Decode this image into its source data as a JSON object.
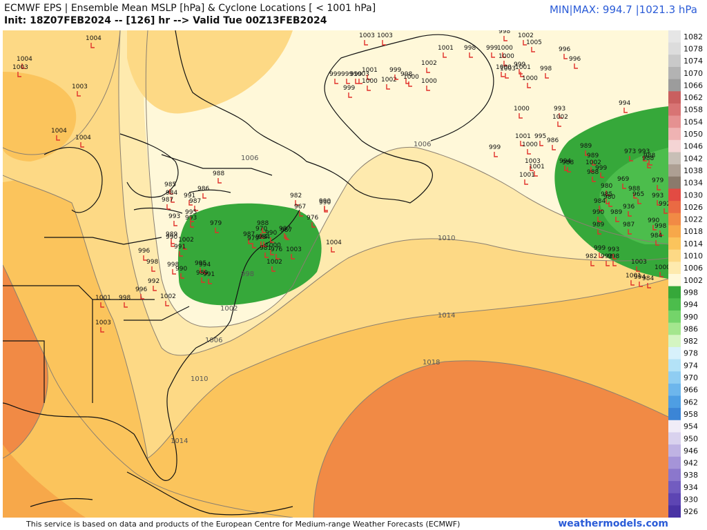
{
  "header": {
    "title": "ECMWF EPS | Ensemble Mean MSLP [hPa] & Cyclone Locations [ < 1001 hPa]",
    "subtitle": "Init: 18Z07FEB2024 -- [126] hr --> Valid Tue 00Z13FEB2024",
    "minmax": "MIN|MAX: 994.7 |1021.3 hPa"
  },
  "footer": {
    "attribution": "This service is based on data and products of the European Centre for Medium-range Weather Forecasts (ECMWF)",
    "brand": "weathermodels.com"
  },
  "colorbar": {
    "items": [
      {
        "label": "1082",
        "color": "#e6e6e6"
      },
      {
        "label": "1078",
        "color": "#dcdcdc"
      },
      {
        "label": "1074",
        "color": "#c9c9c9"
      },
      {
        "label": "1070",
        "color": "#b3b3b3"
      },
      {
        "label": "1066",
        "color": "#9c9c9c"
      },
      {
        "label": "1062",
        "color": "#c95f5f"
      },
      {
        "label": "1058",
        "color": "#d87474"
      },
      {
        "label": "1054",
        "color": "#e59191"
      },
      {
        "label": "1050",
        "color": "#efb3b3"
      },
      {
        "label": "1046",
        "color": "#f4d4d4"
      },
      {
        "label": "1042",
        "color": "#c8bfb6"
      },
      {
        "label": "1038",
        "color": "#ad9f93"
      },
      {
        "label": "1034",
        "color": "#8a7a6c"
      },
      {
        "label": "1030",
        "color": "#e24b43"
      },
      {
        "label": "1026",
        "color": "#ea6a43"
      },
      {
        "label": "1022",
        "color": "#f18a45"
      },
      {
        "label": "1018",
        "color": "#f7a84a"
      },
      {
        "label": "1014",
        "color": "#fbc45c"
      },
      {
        "label": "1010",
        "color": "#fdd985"
      },
      {
        "label": "1006",
        "color": "#feeaae"
      },
      {
        "label": "1002",
        "color": "#fff8d9"
      },
      {
        "label": "998",
        "color": "#36a83a"
      },
      {
        "label": "994",
        "color": "#4cbd4c"
      },
      {
        "label": "990",
        "color": "#74d46a"
      },
      {
        "label": "986",
        "color": "#a4e68e"
      },
      {
        "label": "982",
        "color": "#d4f5c2"
      },
      {
        "label": "978",
        "color": "#d7f1fb"
      },
      {
        "label": "974",
        "color": "#b3e2f7"
      },
      {
        "label": "970",
        "color": "#8fcdf2"
      },
      {
        "label": "966",
        "color": "#6db6ec"
      },
      {
        "label": "962",
        "color": "#4e9ee3"
      },
      {
        "label": "958",
        "color": "#3b85d6"
      },
      {
        "label": "954",
        "color": "#f0ecf7"
      },
      {
        "label": "950",
        "color": "#d9d2ee"
      },
      {
        "label": "946",
        "color": "#bfb3e3"
      },
      {
        "label": "942",
        "color": "#a594d8"
      },
      {
        "label": "938",
        "color": "#8b77cc"
      },
      {
        "label": "934",
        "color": "#725cc0"
      },
      {
        "label": "930",
        "color": "#5d45b3"
      },
      {
        "label": "926",
        "color": "#4a33a4"
      }
    ]
  },
  "map": {
    "isobar_labels": [
      {
        "text": "1006"
      },
      {
        "text": "1006"
      },
      {
        "text": "1006"
      },
      {
        "text": "1010"
      },
      {
        "text": "1010"
      },
      {
        "text": "1014"
      },
      {
        "text": "1014"
      },
      {
        "text": "1018"
      },
      {
        "text": "1002"
      },
      {
        "text": "998"
      }
    ],
    "cyclones": [
      {
        "p": "1004"
      },
      {
        "p": "1004"
      },
      {
        "p": "1003"
      },
      {
        "p": "1003"
      },
      {
        "p": "1004"
      },
      {
        "p": "1004"
      },
      {
        "p": "1003"
      },
      {
        "p": "1003"
      },
      {
        "p": "998"
      },
      {
        "p": "1002"
      },
      {
        "p": "1005"
      },
      {
        "p": "996"
      },
      {
        "p": "996"
      },
      {
        "p": "998"
      },
      {
        "p": "999"
      },
      {
        "p": "1000"
      },
      {
        "p": "1000"
      },
      {
        "p": "1003"
      },
      {
        "p": "1000"
      },
      {
        "p": "1001"
      },
      {
        "p": "998"
      },
      {
        "p": "999"
      },
      {
        "p": "1000"
      },
      {
        "p": "1002"
      },
      {
        "p": "1001"
      },
      {
        "p": "999"
      },
      {
        "p": "999"
      },
      {
        "p": "999"
      },
      {
        "p": "1003"
      },
      {
        "p": "1001"
      },
      {
        "p": "999"
      },
      {
        "p": "1000"
      },
      {
        "p": "1002"
      },
      {
        "p": "999"
      },
      {
        "p": "1000"
      },
      {
        "p": "998"
      },
      {
        "p": "1000"
      },
      {
        "p": "993"
      },
      {
        "p": "994"
      },
      {
        "p": "1000"
      },
      {
        "p": "1002"
      },
      {
        "p": "999"
      },
      {
        "p": "1001"
      },
      {
        "p": "995"
      },
      {
        "p": "986"
      },
      {
        "p": "1001"
      },
      {
        "p": "988"
      },
      {
        "p": "985"
      },
      {
        "p": "984"
      },
      {
        "p": "987"
      },
      {
        "p": "986"
      },
      {
        "p": "991"
      },
      {
        "p": "987"
      },
      {
        "p": "988"
      },
      {
        "p": "990"
      },
      {
        "p": "993"
      },
      {
        "p": "995"
      },
      {
        "p": "979"
      },
      {
        "p": "990"
      },
      {
        "p": "993"
      },
      {
        "p": "989"
      },
      {
        "p": "1002"
      },
      {
        "p": "991"
      },
      {
        "p": "996"
      },
      {
        "p": "998"
      },
      {
        "p": "998"
      },
      {
        "p": "990"
      },
      {
        "p": "995"
      },
      {
        "p": "994"
      },
      {
        "p": "989"
      },
      {
        "p": "991"
      },
      {
        "p": "992"
      },
      {
        "p": "996"
      },
      {
        "p": "1002"
      },
      {
        "p": "998"
      },
      {
        "p": "1001"
      },
      {
        "p": "1003"
      },
      {
        "p": "987"
      },
      {
        "p": "984"
      },
      {
        "p": "990"
      },
      {
        "p": "987"
      },
      {
        "p": "1000"
      },
      {
        "p": "1002"
      },
      {
        "p": "1003"
      },
      {
        "p": "987"
      },
      {
        "p": "1004"
      },
      {
        "p": "990"
      },
      {
        "p": "976"
      },
      {
        "p": "982"
      },
      {
        "p": "967"
      },
      {
        "p": "988"
      },
      {
        "p": "970"
      },
      {
        "p": "984"
      },
      {
        "p": "981"
      },
      {
        "p": "976"
      },
      {
        "p": "979"
      },
      {
        "p": "989"
      },
      {
        "p": "989"
      },
      {
        "p": "1002"
      },
      {
        "p": "994"
      },
      {
        "p": "988"
      },
      {
        "p": "999"
      },
      {
        "p": "980"
      },
      {
        "p": "985"
      },
      {
        "p": "984"
      },
      {
        "p": "980"
      },
      {
        "p": "973"
      },
      {
        "p": "993"
      },
      {
        "p": "988"
      },
      {
        "p": "988"
      },
      {
        "p": "969"
      },
      {
        "p": "965"
      },
      {
        "p": "979"
      },
      {
        "p": "993"
      },
      {
        "p": "988"
      },
      {
        "p": "992"
      },
      {
        "p": "990"
      },
      {
        "p": "989"
      },
      {
        "p": "936"
      },
      {
        "p": "987"
      },
      {
        "p": "990"
      },
      {
        "p": "998"
      },
      {
        "p": "984"
      },
      {
        "p": "989"
      },
      {
        "p": "999"
      },
      {
        "p": "993"
      },
      {
        "p": "998"
      },
      {
        "p": "982"
      },
      {
        "p": "993"
      },
      {
        "p": "1003"
      },
      {
        "p": "984"
      },
      {
        "p": "994"
      },
      {
        "p": "1001"
      },
      {
        "p": "1000"
      },
      {
        "p": "999"
      },
      {
        "p": "1003"
      },
      {
        "p": "1001"
      },
      {
        "p": "1000"
      }
    ]
  }
}
